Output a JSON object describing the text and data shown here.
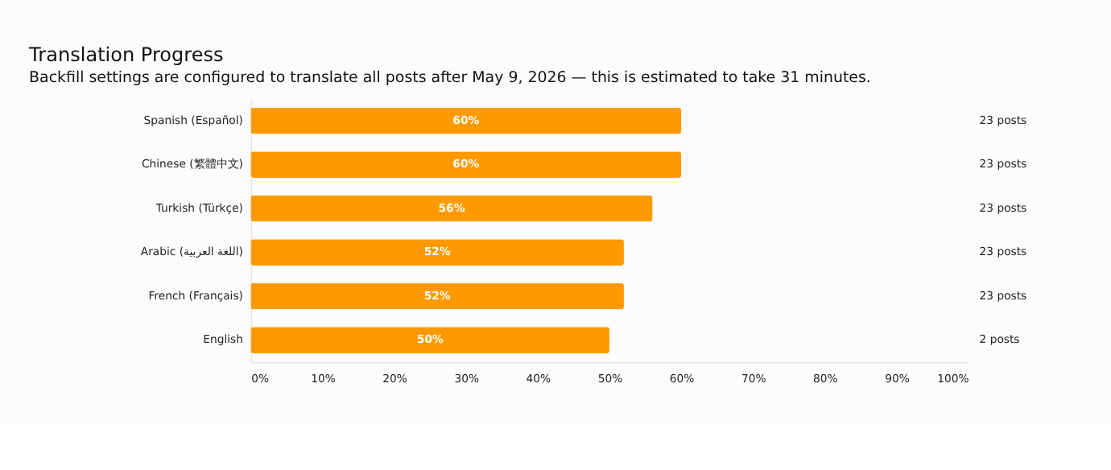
{
  "chart_data": {
    "type": "bar",
    "orientation": "horizontal",
    "title": "Translation Progress",
    "subtitle": "Backfill settings are configured to translate all posts after May 9, 2026 — this is estimated to take 31 minutes.",
    "categories": [
      "Spanish (Español)",
      "Chinese (繁體中文)",
      "Turkish (Türkçe)",
      "Arabic (اللغة العربية)",
      "French (Français)",
      "English"
    ],
    "values": [
      60,
      60,
      56,
      52,
      52,
      50
    ],
    "value_labels": [
      "60%",
      "60%",
      "56%",
      "52%",
      "52%",
      "50%"
    ],
    "color": "#ff9900",
    "xlim": [
      0,
      100
    ],
    "xticks": [
      {
        "value": 0,
        "label": "0%"
      },
      {
        "value": 10,
        "label": "10%"
      },
      {
        "value": 20,
        "label": "20%"
      },
      {
        "value": 30,
        "label": "30%"
      },
      {
        "value": 40,
        "label": "40%"
      },
      {
        "value": 50,
        "label": "50%"
      },
      {
        "value": 60,
        "label": "60%"
      },
      {
        "value": 70,
        "label": "70%"
      },
      {
        "value": 80,
        "label": "80%"
      },
      {
        "value": 90,
        "label": "90%"
      },
      {
        "value": 100,
        "label": "100%"
      }
    ],
    "annotations": [
      "23 posts",
      "23 posts",
      "23 posts",
      "23 posts",
      "23 posts",
      "2 posts"
    ],
    "grid": false
  }
}
